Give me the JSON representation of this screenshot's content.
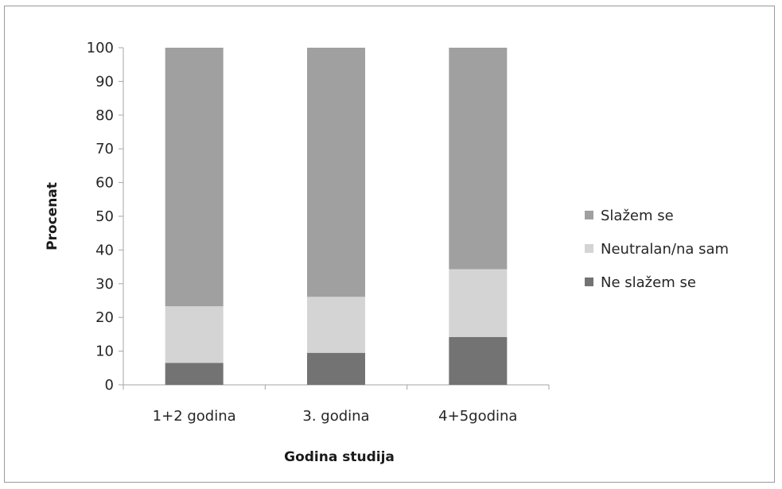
{
  "chart_data": {
    "type": "bar",
    "stacked": true,
    "categories": [
      "1+2 godina",
      "3. godina",
      "4+5godina"
    ],
    "series": [
      {
        "name": "Ne slažem se",
        "values": [
          6.5,
          9.5,
          14.2
        ],
        "color": "#737373"
      },
      {
        "name": "Neutralan/na sam",
        "values": [
          16.8,
          16.6,
          20.1
        ],
        "color": "#d4d4d4"
      },
      {
        "name": "Slažem se",
        "values": [
          76.7,
          73.9,
          65.7
        ],
        "color": "#a0a0a0"
      }
    ],
    "title": "",
    "xlabel": "Godina studija",
    "ylabel": "Procenat",
    "ylim": [
      0,
      100
    ],
    "yticks": [
      0,
      10,
      20,
      30,
      40,
      50,
      60,
      70,
      80,
      90,
      100
    ],
    "grid": false,
    "legend_position": "right",
    "legend_order": [
      "Slažem se",
      "Neutralan/na sam",
      "Ne slažem se"
    ]
  }
}
